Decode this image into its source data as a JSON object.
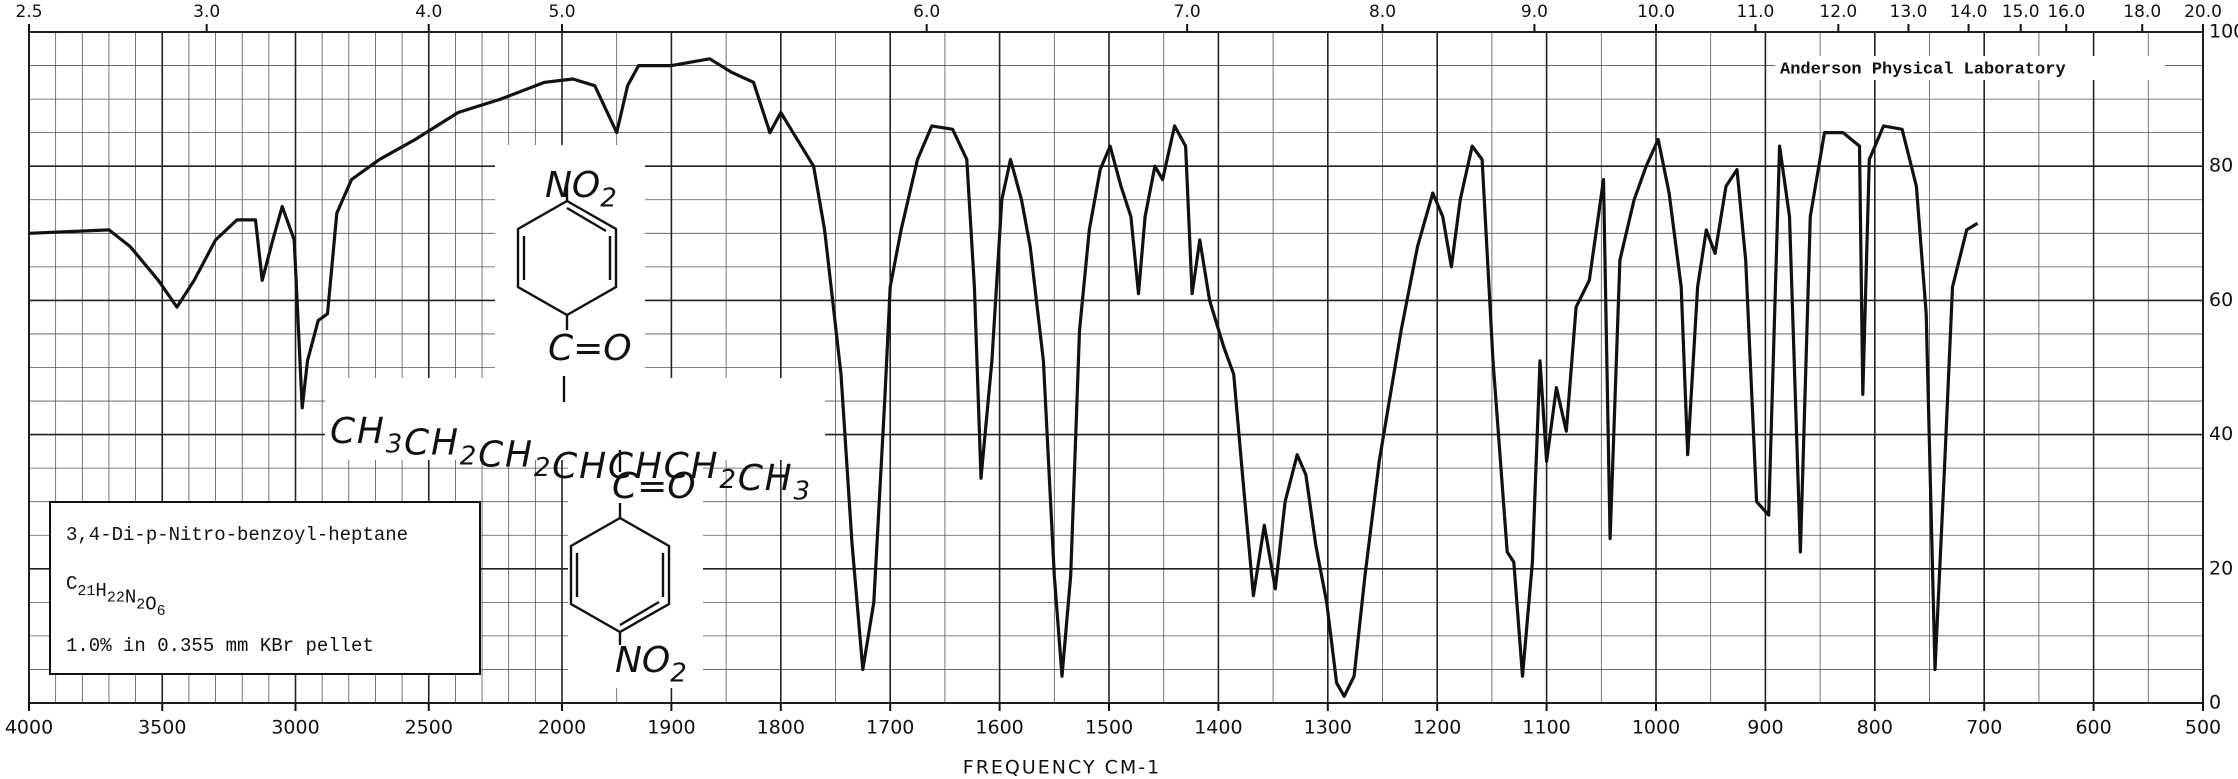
{
  "chart_data": {
    "type": "line",
    "annotation_lab": "Anderson Physical Laboratory",
    "xlabel": "FREQUENCY   CM-1",
    "xscale": {
      "type": "piecewise",
      "break": 2000
    },
    "xlim": [
      4000,
      500
    ],
    "ylim": [
      0,
      100
    ],
    "xticks": [
      4000,
      3500,
      3000,
      2500,
      2000,
      1900,
      1800,
      1700,
      1600,
      1500,
      1400,
      1300,
      1200,
      1100,
      1000,
      900,
      800,
      700,
      600,
      500
    ],
    "yticks": [
      0,
      20,
      40,
      60,
      80,
      100
    ],
    "x2ticks": [
      2.5,
      {
        "value": 3,
        "label": "3.0"
      },
      {
        "value": 4,
        "label": "4.0"
      },
      {
        "value": 5,
        "label": "5.0"
      },
      {
        "value": 6,
        "label": "6.0"
      },
      {
        "value": 7,
        "label": "7.0"
      },
      {
        "value": 8,
        "label": "8.0"
      },
      {
        "value": 9,
        "label": "9.0"
      },
      {
        "value": 10,
        "label": "10.0"
      },
      {
        "value": 11,
        "label": "11.0"
      },
      {
        "value": 12,
        "label": "12.0"
      },
      {
        "value": 13,
        "label": "13.0"
      },
      {
        "value": 14,
        "label": "14.0"
      },
      {
        "value": 15,
        "label": "15.0"
      },
      {
        "value": 16,
        "label": "16.0"
      },
      {
        "value": 18,
        "label": "18.0"
      },
      {
        "value": 20,
        "label": "20.0"
      }
    ],
    "grid": true,
    "color": "#111111",
    "x": [
      4000,
      3700,
      3620,
      3515,
      3445,
      3380,
      3300,
      3220,
      3150,
      3125,
      3085,
      3050,
      3005,
      2975,
      2955,
      2915,
      2880,
      2845,
      2790,
      2685,
      2550,
      2390,
      2230,
      2065,
      1990,
      1970,
      1950,
      1940,
      1930,
      1900,
      1865,
      1845,
      1825,
      1810,
      1800,
      1785,
      1770,
      1760,
      1745,
      1735,
      1725,
      1715,
      1705,
      1700,
      1690,
      1675,
      1662,
      1643,
      1630,
      1623,
      1617,
      1607,
      1598,
      1590,
      1580,
      1572,
      1560,
      1550,
      1543,
      1535,
      1527,
      1518,
      1508,
      1499,
      1489,
      1480,
      1473,
      1467,
      1458,
      1451,
      1440,
      1430,
      1424,
      1417,
      1408,
      1395,
      1386,
      1378,
      1368,
      1358,
      1348,
      1339,
      1328,
      1320,
      1311,
      1301,
      1292,
      1285,
      1276,
      1266,
      1253,
      1233,
      1218,
      1204,
      1195,
      1187,
      1179,
      1168,
      1159,
      1149,
      1136,
      1130,
      1122,
      1113,
      1106,
      1100,
      1091,
      1082,
      1073,
      1061,
      1048,
      1042,
      1033,
      1020,
      1009,
      998,
      988,
      977,
      971,
      962,
      954,
      946,
      936,
      926,
      918,
      908,
      897,
      887,
      878,
      868,
      859,
      846,
      829,
      814,
      811,
      805,
      792,
      775,
      762,
      753,
      745,
      736,
      729,
      716,
      706
    ],
    "values": [
      70,
      70.5,
      68,
      63,
      59,
      63,
      69,
      72,
      72,
      63,
      69,
      74,
      69,
      44,
      51,
      57,
      58,
      73,
      78,
      81,
      84,
      88,
      90,
      92.5,
      93,
      92,
      85,
      92,
      95,
      95,
      96,
      94,
      92.5,
      85,
      88,
      84,
      80,
      70.5,
      49,
      24,
      5,
      15,
      45,
      62,
      70.5,
      81,
      86,
      85.5,
      81,
      62,
      33.5,
      51,
      75,
      81,
      75,
      68,
      51,
      19,
      4,
      19,
      55.5,
      70.5,
      79.5,
      83,
      77,
      72.5,
      61,
      72.5,
      80,
      78,
      86,
      83,
      61,
      69,
      60,
      53,
      49,
      34,
      16,
      26.5,
      17,
      30,
      37,
      34,
      23.5,
      15,
      3,
      1,
      4,
      19,
      36,
      55.5,
      68,
      76,
      72.5,
      65,
      75,
      83,
      81,
      51,
      22.5,
      21,
      4,
      21,
      51,
      36,
      47,
      40.5,
      59,
      63,
      78,
      24.5,
      66,
      75,
      80,
      84,
      76,
      62,
      37,
      62,
      70.5,
      67,
      77,
      79.5,
      66,
      30,
      28,
      83,
      72.5,
      22.5,
      72.5,
      85,
      85,
      83,
      46,
      81,
      86,
      85.5,
      77,
      58,
      5,
      36,
      62,
      70.5,
      71.5
    ],
    "sample": {
      "name": "3,4-Di-p-Nitro-benzoyl-heptane",
      "formula": [
        {
          "text": "C",
          "sub": "21"
        },
        {
          "text": "H",
          "sub": "22"
        },
        {
          "text": "N",
          "sub": "2"
        },
        {
          "text": "O",
          "sub": "6"
        }
      ],
      "conditions": "1.0% in 0.355 mm  KBr pellet"
    },
    "structure": {
      "top_group": [
        {
          "text": "NO",
          "sub": "2"
        }
      ],
      "top_carbonyl": "C=O",
      "chain": [
        {
          "text": "CH",
          "sub": "3"
        },
        {
          "text": "CH",
          "sub": "2"
        },
        {
          "text": "CH",
          "sub": "2"
        },
        {
          "text": "CH"
        },
        {
          "text": "CH"
        },
        {
          "text": "CH",
          "sub": "2"
        },
        {
          "text": "CH",
          "sub": "3"
        }
      ],
      "bottom_carbonyl": "C=O",
      "bottom_group": [
        {
          "text": "NO",
          "sub": "2"
        }
      ]
    }
  }
}
